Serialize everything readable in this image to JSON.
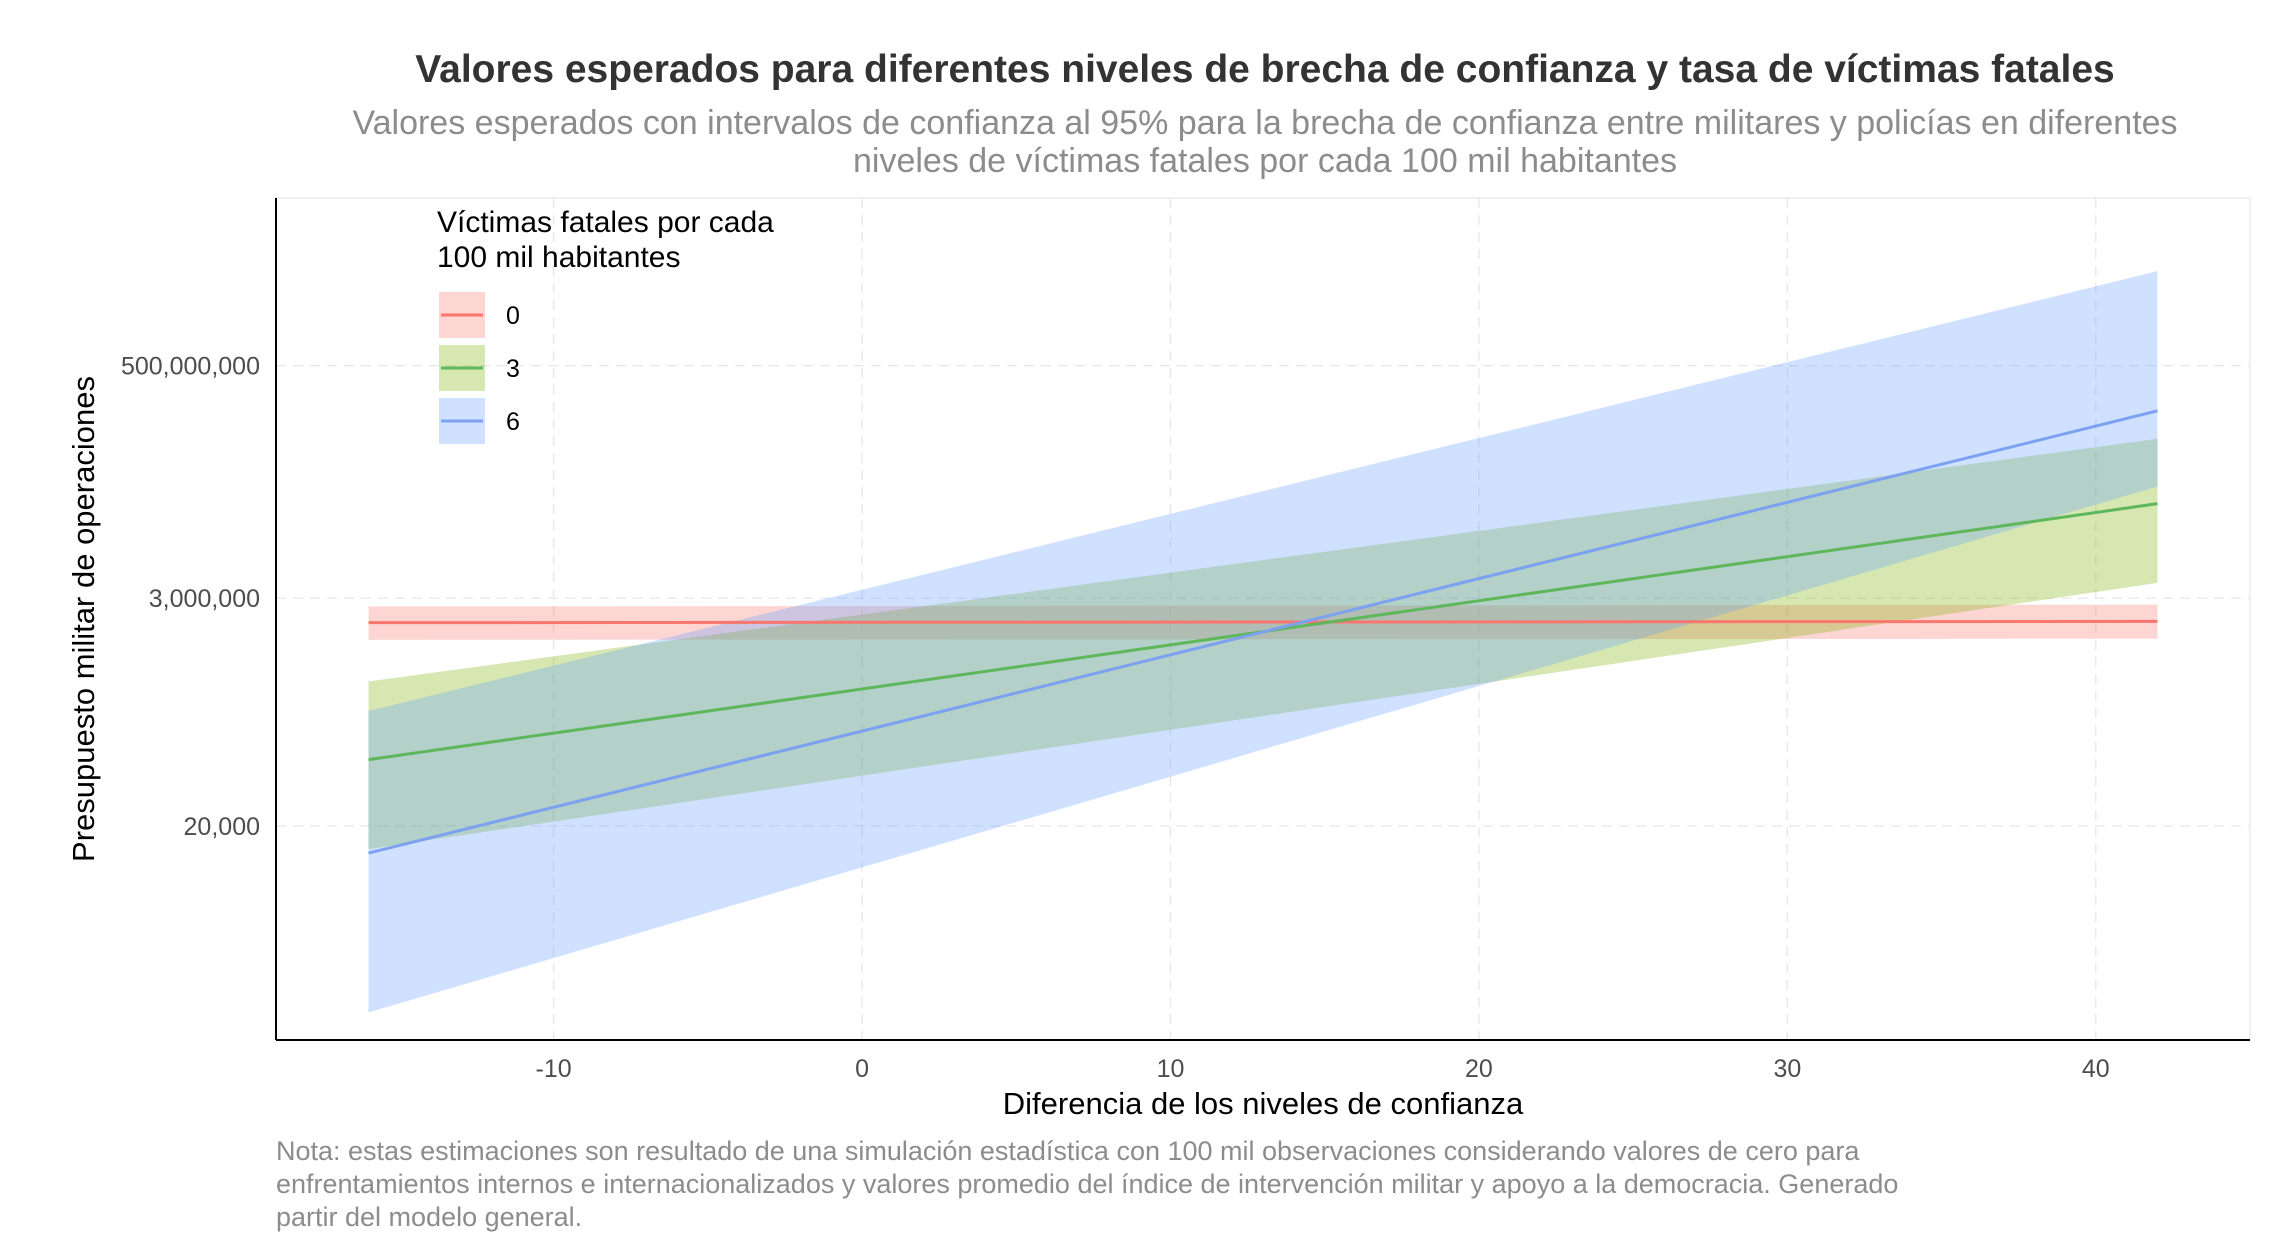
{
  "chart_data": {
    "type": "line",
    "title": "Valores esperados para diferentes niveles de brecha de confianza y tasa de víctimas fatales",
    "subtitle_lines": [
      "Valores esperados con intervalos de confianza al 95% para la brecha de confianza entre militares y policías en diferentes",
      "niveles de víctimas fatales por cada 100 mil habitantes"
    ],
    "xlabel": "Diferencia de los niveles de confianza",
    "ylabel": "Presupuesto militar de operaciones",
    "caption_lines": [
      "Nota: estas estimaciones son resultado de una simulación estadística con 100 mil observaciones considerando valores de cero para",
      "enfrentamientos internos e internacionalizados y valores promedio del índice de intervención militar y apoyo a la democracia. Generado",
      "partir del modelo general."
    ],
    "x_scale": "linear",
    "y_scale": "log",
    "xlim": [
      -19,
      45
    ],
    "ylim": [
      180,
      20000000000
    ],
    "x_ticks": [
      -10,
      0,
      10,
      20,
      30,
      40
    ],
    "x_tick_labels": [
      "-10",
      "0",
      "10",
      "20",
      "30",
      "40"
    ],
    "y_ticks": [
      20000,
      3000000,
      500000000
    ],
    "y_tick_labels": [
      "20,000",
      "3,000,000",
      "500,000,000"
    ],
    "grid": true,
    "legend": {
      "title_lines": [
        "Víctimas fatales por cada",
        "100 mil habitantes"
      ],
      "position": "top-left"
    },
    "series": [
      {
        "name": "0",
        "color": "#F8766D",
        "x": [
          -16,
          42
        ],
        "y": [
          1750000,
          1800000
        ],
        "ci_lower": [
          1200000,
          1230000
        ],
        "ci_upper": [
          2500000,
          2600000
        ]
      },
      {
        "name": "3",
        "color": "#5EB85B",
        "x": [
          -16,
          42
        ],
        "y": [
          86000,
          24000000
        ],
        "ci_lower": [
          12000,
          4200000
        ],
        "ci_upper": [
          480000,
          100000000
        ]
      },
      {
        "name": "6",
        "color": "#7CA1F0",
        "x": [
          -16,
          42
        ],
        "y": [
          11000,
          185000000
        ],
        "ci_lower": [
          330,
          35000000
        ],
        "ci_upper": [
          250000,
          4000000000
        ]
      }
    ],
    "series_band_colors": [
      "#F8766D",
      "#7CAE00",
      "#619CFF"
    ]
  }
}
